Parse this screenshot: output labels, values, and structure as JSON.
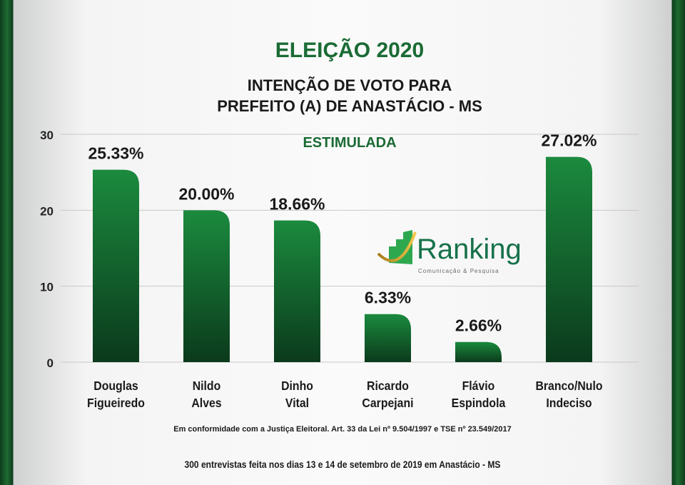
{
  "chart_data": {
    "type": "bar",
    "title": "ELEIÇÃO 2020",
    "subtitle_lines": [
      "INTENÇÃO DE VOTO PARA",
      "PREFEITO (A) DE ANASTÁCIO - MS"
    ],
    "subtitle2": "ESTIMULADA",
    "categories": [
      [
        "Douglas",
        "Figueiredo"
      ],
      [
        "Nildo",
        "Alves"
      ],
      [
        "Dinho",
        "Vital"
      ],
      [
        "Ricardo",
        "Carpejani"
      ],
      [
        "Flávio",
        "Espindola"
      ],
      [
        "Branco/Nulo",
        "Indeciso"
      ]
    ],
    "values": [
      25.33,
      20.0,
      18.66,
      6.33,
      2.66,
      27.02
    ],
    "data_labels": [
      "25.33%",
      "20.00%",
      "18.66%",
      "6.33%",
      "2.66%",
      "27.02%"
    ],
    "yticks": [
      "0",
      "10",
      "20",
      "30"
    ],
    "ylim": [
      0,
      30
    ],
    "grid": true,
    "colors": {
      "bar_top": "#1b8a3e",
      "bar_bottom": "#0b3a1c",
      "title": "#1a6b34"
    }
  },
  "logo": {
    "name": "Ranking",
    "tagline": "Comunicação & Pesquisa"
  },
  "footer": {
    "legal": "Em conformidade com a Justiça Eleitoral. Art. 33 da Lei nº 9.504/1997 e TSE nº 23.549/2017",
    "sample": "300 entrevistas feita nos dias 13 e 14 de setembro de 2019 em Anastácio - MS"
  }
}
